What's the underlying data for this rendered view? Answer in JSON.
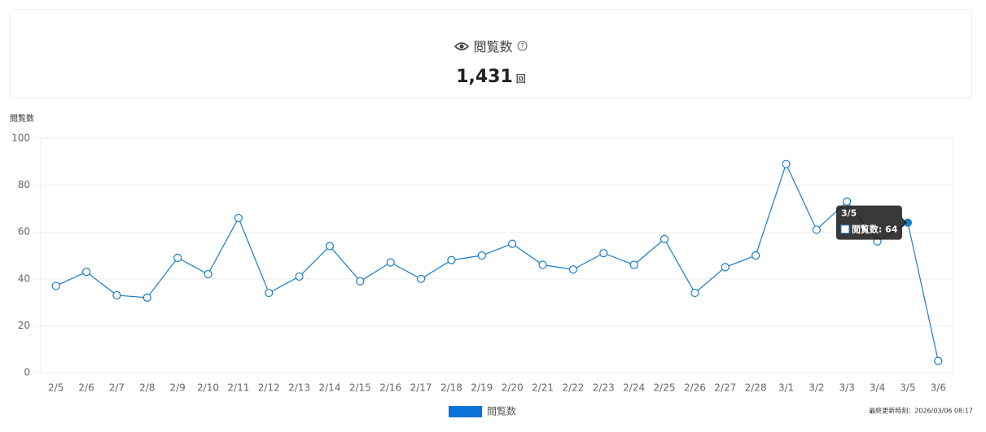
{
  "header": {
    "title": "閲覧数",
    "total": "1,431",
    "unit": "回"
  },
  "chart_data": {
    "type": "line",
    "y_label": "閲覧数",
    "categories": [
      "2/5",
      "2/6",
      "2/7",
      "2/8",
      "2/9",
      "2/10",
      "2/11",
      "2/12",
      "2/13",
      "2/14",
      "2/15",
      "2/16",
      "2/17",
      "2/18",
      "2/19",
      "2/20",
      "2/21",
      "2/22",
      "2/23",
      "2/24",
      "2/25",
      "2/26",
      "2/27",
      "2/28",
      "3/1",
      "3/2",
      "3/3",
      "3/4",
      "3/5",
      "3/6"
    ],
    "series": [
      {
        "name": "閲覧数",
        "color": "#1a7cc9",
        "legend_color": "#0a74da",
        "values": [
          37,
          43,
          33,
          32,
          49,
          42,
          66,
          34,
          41,
          54,
          39,
          47,
          40,
          48,
          50,
          55,
          46,
          44,
          51,
          46,
          57,
          34,
          45,
          50,
          89,
          61,
          73,
          56,
          64,
          5
        ]
      }
    ],
    "ylim": [
      0,
      100
    ],
    "yticks": [
      0,
      20,
      40,
      60,
      80,
      100
    ],
    "grid": true,
    "tooltip": {
      "title": "3/5",
      "label": "閲覧数: 64"
    }
  },
  "footer": {
    "updated": "最終更新時刻：2026/03/06 08:17"
  }
}
